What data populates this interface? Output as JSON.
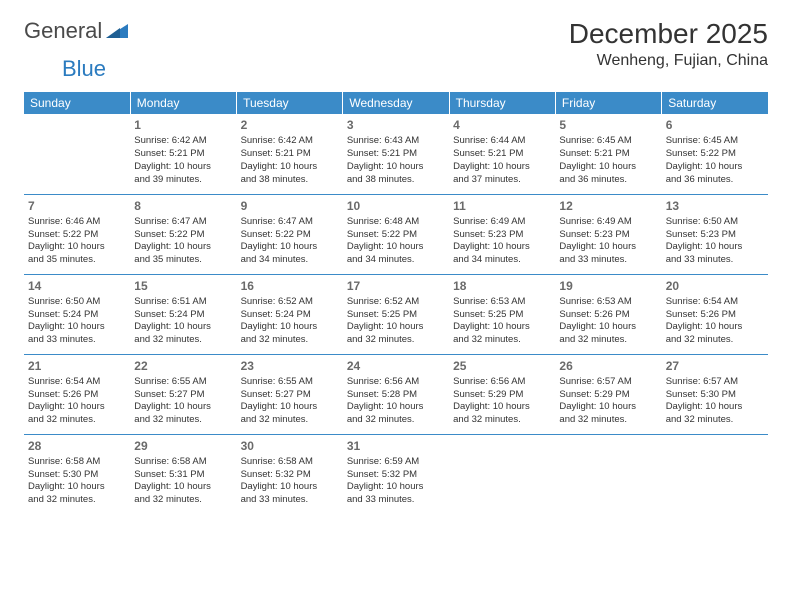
{
  "logo": {
    "text1": "General",
    "text2": "Blue"
  },
  "header": {
    "month_title": "December 2025",
    "location": "Wenheng, Fujian, China"
  },
  "colors": {
    "header_bg": "#3b8bc8",
    "header_text": "#ffffff",
    "row_divider": "#3b8bc8",
    "body_text": "#333333",
    "daynum_text": "#6a6a6a",
    "logo_gray": "#4a4a4a",
    "logo_blue": "#2b7bbf",
    "background": "#ffffff"
  },
  "typography": {
    "month_title_fontsize": 28,
    "location_fontsize": 16,
    "dayheader_fontsize": 12,
    "daynum_fontsize": 12,
    "cell_fontsize": 9.5
  },
  "day_headers": [
    "Sunday",
    "Monday",
    "Tuesday",
    "Wednesday",
    "Thursday",
    "Friday",
    "Saturday"
  ],
  "weeks": [
    [
      null,
      {
        "n": "1",
        "sunrise": "Sunrise: 6:42 AM",
        "sunset": "Sunset: 5:21 PM",
        "day1": "Daylight: 10 hours",
        "day2": "and 39 minutes."
      },
      {
        "n": "2",
        "sunrise": "Sunrise: 6:42 AM",
        "sunset": "Sunset: 5:21 PM",
        "day1": "Daylight: 10 hours",
        "day2": "and 38 minutes."
      },
      {
        "n": "3",
        "sunrise": "Sunrise: 6:43 AM",
        "sunset": "Sunset: 5:21 PM",
        "day1": "Daylight: 10 hours",
        "day2": "and 38 minutes."
      },
      {
        "n": "4",
        "sunrise": "Sunrise: 6:44 AM",
        "sunset": "Sunset: 5:21 PM",
        "day1": "Daylight: 10 hours",
        "day2": "and 37 minutes."
      },
      {
        "n": "5",
        "sunrise": "Sunrise: 6:45 AM",
        "sunset": "Sunset: 5:21 PM",
        "day1": "Daylight: 10 hours",
        "day2": "and 36 minutes."
      },
      {
        "n": "6",
        "sunrise": "Sunrise: 6:45 AM",
        "sunset": "Sunset: 5:22 PM",
        "day1": "Daylight: 10 hours",
        "day2": "and 36 minutes."
      }
    ],
    [
      {
        "n": "7",
        "sunrise": "Sunrise: 6:46 AM",
        "sunset": "Sunset: 5:22 PM",
        "day1": "Daylight: 10 hours",
        "day2": "and 35 minutes."
      },
      {
        "n": "8",
        "sunrise": "Sunrise: 6:47 AM",
        "sunset": "Sunset: 5:22 PM",
        "day1": "Daylight: 10 hours",
        "day2": "and 35 minutes."
      },
      {
        "n": "9",
        "sunrise": "Sunrise: 6:47 AM",
        "sunset": "Sunset: 5:22 PM",
        "day1": "Daylight: 10 hours",
        "day2": "and 34 minutes."
      },
      {
        "n": "10",
        "sunrise": "Sunrise: 6:48 AM",
        "sunset": "Sunset: 5:22 PM",
        "day1": "Daylight: 10 hours",
        "day2": "and 34 minutes."
      },
      {
        "n": "11",
        "sunrise": "Sunrise: 6:49 AM",
        "sunset": "Sunset: 5:23 PM",
        "day1": "Daylight: 10 hours",
        "day2": "and 34 minutes."
      },
      {
        "n": "12",
        "sunrise": "Sunrise: 6:49 AM",
        "sunset": "Sunset: 5:23 PM",
        "day1": "Daylight: 10 hours",
        "day2": "and 33 minutes."
      },
      {
        "n": "13",
        "sunrise": "Sunrise: 6:50 AM",
        "sunset": "Sunset: 5:23 PM",
        "day1": "Daylight: 10 hours",
        "day2": "and 33 minutes."
      }
    ],
    [
      {
        "n": "14",
        "sunrise": "Sunrise: 6:50 AM",
        "sunset": "Sunset: 5:24 PM",
        "day1": "Daylight: 10 hours",
        "day2": "and 33 minutes."
      },
      {
        "n": "15",
        "sunrise": "Sunrise: 6:51 AM",
        "sunset": "Sunset: 5:24 PM",
        "day1": "Daylight: 10 hours",
        "day2": "and 32 minutes."
      },
      {
        "n": "16",
        "sunrise": "Sunrise: 6:52 AM",
        "sunset": "Sunset: 5:24 PM",
        "day1": "Daylight: 10 hours",
        "day2": "and 32 minutes."
      },
      {
        "n": "17",
        "sunrise": "Sunrise: 6:52 AM",
        "sunset": "Sunset: 5:25 PM",
        "day1": "Daylight: 10 hours",
        "day2": "and 32 minutes."
      },
      {
        "n": "18",
        "sunrise": "Sunrise: 6:53 AM",
        "sunset": "Sunset: 5:25 PM",
        "day1": "Daylight: 10 hours",
        "day2": "and 32 minutes."
      },
      {
        "n": "19",
        "sunrise": "Sunrise: 6:53 AM",
        "sunset": "Sunset: 5:26 PM",
        "day1": "Daylight: 10 hours",
        "day2": "and 32 minutes."
      },
      {
        "n": "20",
        "sunrise": "Sunrise: 6:54 AM",
        "sunset": "Sunset: 5:26 PM",
        "day1": "Daylight: 10 hours",
        "day2": "and 32 minutes."
      }
    ],
    [
      {
        "n": "21",
        "sunrise": "Sunrise: 6:54 AM",
        "sunset": "Sunset: 5:26 PM",
        "day1": "Daylight: 10 hours",
        "day2": "and 32 minutes."
      },
      {
        "n": "22",
        "sunrise": "Sunrise: 6:55 AM",
        "sunset": "Sunset: 5:27 PM",
        "day1": "Daylight: 10 hours",
        "day2": "and 32 minutes."
      },
      {
        "n": "23",
        "sunrise": "Sunrise: 6:55 AM",
        "sunset": "Sunset: 5:27 PM",
        "day1": "Daylight: 10 hours",
        "day2": "and 32 minutes."
      },
      {
        "n": "24",
        "sunrise": "Sunrise: 6:56 AM",
        "sunset": "Sunset: 5:28 PM",
        "day1": "Daylight: 10 hours",
        "day2": "and 32 minutes."
      },
      {
        "n": "25",
        "sunrise": "Sunrise: 6:56 AM",
        "sunset": "Sunset: 5:29 PM",
        "day1": "Daylight: 10 hours",
        "day2": "and 32 minutes."
      },
      {
        "n": "26",
        "sunrise": "Sunrise: 6:57 AM",
        "sunset": "Sunset: 5:29 PM",
        "day1": "Daylight: 10 hours",
        "day2": "and 32 minutes."
      },
      {
        "n": "27",
        "sunrise": "Sunrise: 6:57 AM",
        "sunset": "Sunset: 5:30 PM",
        "day1": "Daylight: 10 hours",
        "day2": "and 32 minutes."
      }
    ],
    [
      {
        "n": "28",
        "sunrise": "Sunrise: 6:58 AM",
        "sunset": "Sunset: 5:30 PM",
        "day1": "Daylight: 10 hours",
        "day2": "and 32 minutes."
      },
      {
        "n": "29",
        "sunrise": "Sunrise: 6:58 AM",
        "sunset": "Sunset: 5:31 PM",
        "day1": "Daylight: 10 hours",
        "day2": "and 32 minutes."
      },
      {
        "n": "30",
        "sunrise": "Sunrise: 6:58 AM",
        "sunset": "Sunset: 5:32 PM",
        "day1": "Daylight: 10 hours",
        "day2": "and 33 minutes."
      },
      {
        "n": "31",
        "sunrise": "Sunrise: 6:59 AM",
        "sunset": "Sunset: 5:32 PM",
        "day1": "Daylight: 10 hours",
        "day2": "and 33 minutes."
      },
      null,
      null,
      null
    ]
  ]
}
